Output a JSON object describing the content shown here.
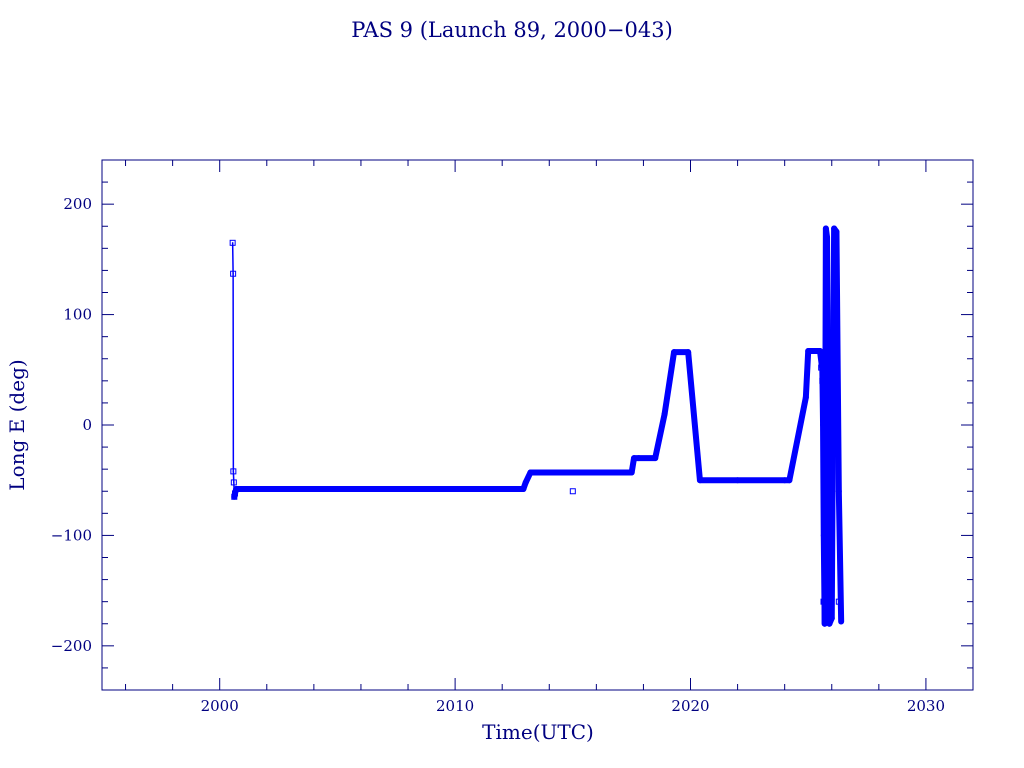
{
  "chart_data": {
    "type": "line",
    "title": "PAS 9 (Launch 89, 2000−043)",
    "xlabel": "Time(UTC)",
    "ylabel": "Long E (deg)",
    "xlim": [
      1995,
      2032
    ],
    "ylim": [
      -240,
      240
    ],
    "x_ticks": [
      2000,
      2010,
      2020,
      2030
    ],
    "x_tick_labels": [
      "2000",
      "2010",
      "2020",
      "2030"
    ],
    "y_ticks": [
      200,
      100,
      0,
      -100,
      -200
    ],
    "y_tick_labels": [
      "200",
      "100",
      "0",
      "−100",
      "−200"
    ],
    "grid": false,
    "colors": {
      "axis": "#000080",
      "series": "#0000ff"
    },
    "series": [
      {
        "x": [
          2000.55,
          2000.57,
          2000.58,
          2000.6,
          2000.62,
          2000.65,
          2000.7,
          2001.0,
          2005.0,
          2010.0,
          2012.9,
          2013.0,
          2013.2,
          2015.0,
          2017.5,
          2017.6,
          2017.8,
          2018.5,
          2018.9,
          2019.3,
          2019.9,
          2020.4,
          2022.0,
          2024.0,
          2024.2,
          2024.9,
          2025.0,
          2025.5,
          2025.6,
          2025.63,
          2025.66,
          2025.7,
          2025.75,
          2025.8,
          2025.9,
          2026.0,
          2026.05,
          2026.1,
          2026.2,
          2026.3,
          2026.4
        ],
        "y": [
          165,
          137,
          -42,
          -52,
          -65,
          -62,
          -58,
          -58,
          -58,
          -58,
          -58,
          -52,
          -43,
          -43,
          -43,
          -30,
          -30,
          -30,
          10,
          66,
          66,
          -50,
          -50,
          -50,
          -50,
          25,
          67,
          67,
          50,
          0,
          -100,
          -180,
          178,
          170,
          -180,
          -175,
          0,
          178,
          175,
          -60,
          -178
        ],
        "markers": [
          {
            "x": 2000.55,
            "y": 165
          },
          {
            "x": 2000.57,
            "y": 137
          },
          {
            "x": 2000.58,
            "y": -42
          },
          {
            "x": 2000.6,
            "y": -52
          },
          {
            "x": 2000.62,
            "y": -65
          },
          {
            "x": 2000.65,
            "y": -62
          },
          {
            "x": 2015.0,
            "y": -60
          },
          {
            "x": 2025.55,
            "y": 52
          },
          {
            "x": 2025.6,
            "y": 40
          },
          {
            "x": 2025.65,
            "y": -160
          },
          {
            "x": 2026.0,
            "y": -130
          },
          {
            "x": 2026.3,
            "y": -160
          }
        ]
      }
    ]
  }
}
